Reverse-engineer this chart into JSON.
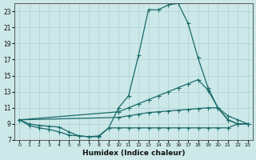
{
  "xlabel": "Humidex (Indice chaleur)",
  "bg_color": "#cce8e8",
  "line_color": "#1a6b6b",
  "grid_color": "#afd0d0",
  "xlim": [
    -0.5,
    23.5
  ],
  "ylim": [
    7,
    24
  ],
  "xticks": [
    0,
    1,
    2,
    3,
    4,
    5,
    6,
    7,
    8,
    9,
    10,
    11,
    12,
    13,
    14,
    15,
    16,
    17,
    18,
    19,
    20,
    21,
    22,
    23
  ],
  "yticks": [
    7,
    9,
    11,
    13,
    15,
    17,
    19,
    21,
    23
  ],
  "line_bell_x": [
    0,
    1,
    2,
    3,
    4,
    5,
    6,
    7,
    8,
    9,
    10,
    11,
    12,
    13,
    14,
    15,
    16,
    17,
    18,
    19,
    20,
    21,
    22,
    23
  ],
  "line_bell_y": [
    9.5,
    9.0,
    8.8,
    8.7,
    8.6,
    8.0,
    7.5,
    7.4,
    7.5,
    8.5,
    11.0,
    12.5,
    17.5,
    23.2,
    23.2,
    23.8,
    24.0,
    21.5,
    17.2,
    13.5,
    11.0,
    9.5,
    9.0,
    9.0
  ],
  "line_upper_diag_x": [
    0,
    10,
    11,
    12,
    13,
    14,
    15,
    16,
    17,
    18,
    19,
    20,
    21,
    22,
    23
  ],
  "line_upper_diag_y": [
    9.5,
    10.5,
    11.0,
    11.5,
    12.0,
    12.5,
    13.0,
    13.5,
    14.0,
    14.5,
    13.2,
    11.0,
    10.0,
    9.5,
    9.0
  ],
  "line_lower_diag_x": [
    0,
    10,
    11,
    12,
    13,
    14,
    15,
    16,
    17,
    18,
    19,
    20,
    21,
    22,
    23
  ],
  "line_lower_diag_y": [
    9.5,
    9.8,
    10.0,
    10.2,
    10.4,
    10.5,
    10.6,
    10.7,
    10.8,
    10.9,
    11.0,
    11.0,
    9.5,
    9.0,
    9.0
  ],
  "line_flat_x": [
    0,
    1,
    2,
    3,
    4,
    5,
    6,
    7,
    8,
    9,
    10,
    11,
    12,
    13,
    14,
    15,
    16,
    17,
    18,
    19,
    20,
    21,
    22,
    23
  ],
  "line_flat_y": [
    9.5,
    8.8,
    8.5,
    8.3,
    8.0,
    7.6,
    7.5,
    7.4,
    7.4,
    8.5,
    8.5,
    8.5,
    8.5,
    8.5,
    8.5,
    8.5,
    8.5,
    8.5,
    8.5,
    8.5,
    8.5,
    8.5,
    9.0,
    9.0
  ]
}
